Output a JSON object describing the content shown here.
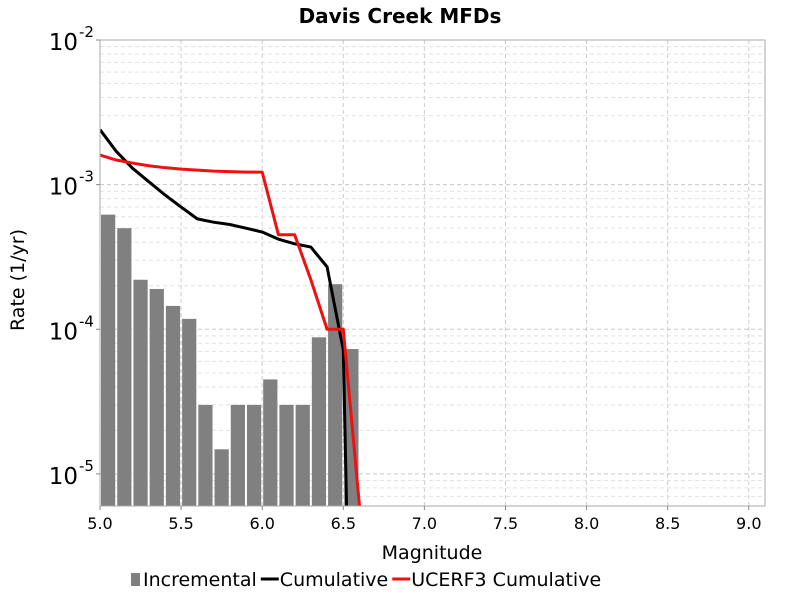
{
  "chart_data": {
    "type": "bar",
    "title": "Davis Creek MFDs",
    "xlabel": "Magnitude",
    "ylabel": "Rate (1/yr)",
    "xlim": [
      5.0,
      9.1
    ],
    "ylim": [
      6e-06,
      0.01
    ],
    "y_scale": "log",
    "grid": true,
    "legend_position": "bottom",
    "x_ticks": [
      "5.0",
      "5.5",
      "6.0",
      "6.5",
      "7.0",
      "7.5",
      "8.0",
      "8.5",
      "9.0"
    ],
    "y_ticks": [
      {
        "value": 0.01,
        "base": "10",
        "exp": "-2"
      },
      {
        "value": 0.001,
        "base": "10",
        "exp": "-3"
      },
      {
        "value": 0.0001,
        "base": "10",
        "exp": "-4"
      },
      {
        "value": 1e-05,
        "base": "10",
        "exp": "-5"
      }
    ],
    "bar_width": 0.1,
    "series": [
      {
        "name": "Incremental",
        "kind": "bar",
        "color": "#808080",
        "x": [
          5.05,
          5.15,
          5.25,
          5.35,
          5.45,
          5.55,
          5.65,
          5.75,
          5.85,
          5.95,
          6.05,
          6.15,
          6.25,
          6.35,
          6.45,
          6.55
        ],
        "y": [
          0.00062,
          0.0005,
          0.00022,
          0.00019,
          0.000145,
          0.000118,
          3e-05,
          1.48e-05,
          3e-05,
          3e-05,
          4.5e-05,
          3e-05,
          3e-05,
          8.8e-05,
          0.000205,
          7.3e-05
        ]
      },
      {
        "name": "Cumulative",
        "kind": "line",
        "color": "#000000",
        "x": [
          5.0,
          5.1,
          5.2,
          5.3,
          5.4,
          5.5,
          5.6,
          5.7,
          5.8,
          5.9,
          6.0,
          6.1,
          6.2,
          6.3,
          6.4,
          6.5,
          6.52
        ],
        "y": [
          0.0024,
          0.0017,
          0.0013,
          0.00105,
          0.00085,
          0.0007,
          0.00058,
          0.00055,
          0.00053,
          0.0005,
          0.00047,
          0.00042,
          0.00039,
          0.00037,
          0.00027,
          7.2e-05,
          6e-06
        ]
      },
      {
        "name": "UCERF3 Cumulative",
        "kind": "line",
        "color": "#ee1111",
        "x": [
          5.0,
          5.1,
          5.2,
          5.3,
          5.4,
          5.5,
          5.6,
          5.7,
          5.8,
          5.9,
          6.0,
          6.1,
          6.2,
          6.3,
          6.4,
          6.5,
          6.6
        ],
        "y": [
          0.0016,
          0.00148,
          0.00141,
          0.00135,
          0.00131,
          0.00128,
          0.00126,
          0.00124,
          0.00123,
          0.00122,
          0.00122,
          0.00045,
          0.00045,
          0.00022,
          0.0001,
          0.0001,
          6e-06
        ]
      }
    ]
  }
}
